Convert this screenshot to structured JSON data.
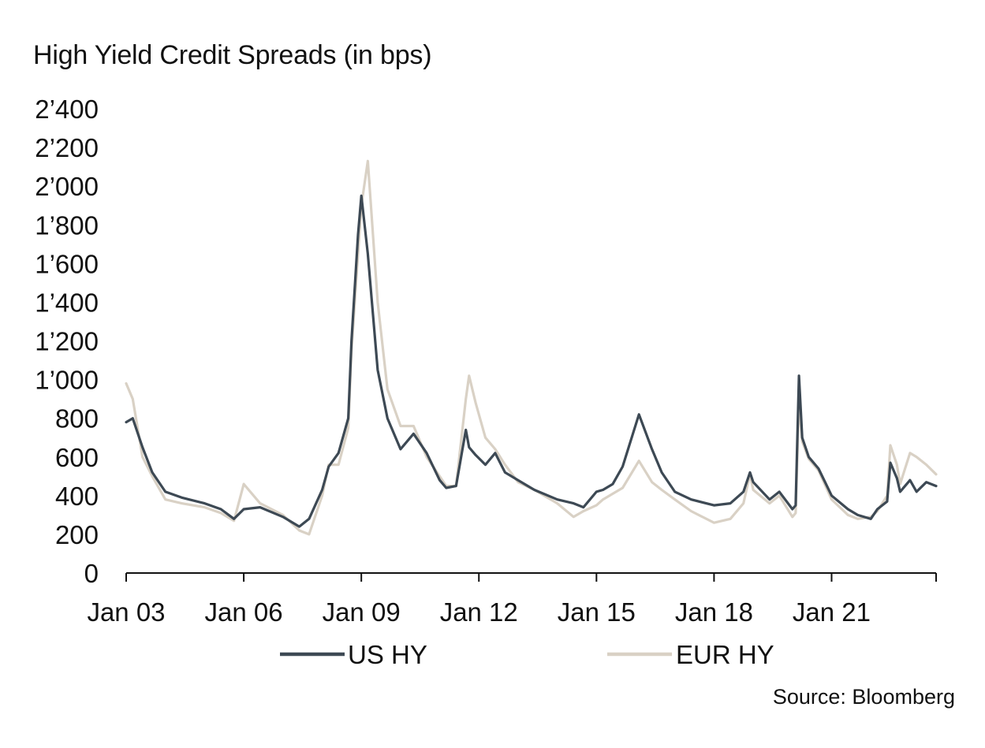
{
  "chart_data": {
    "type": "line",
    "title": "High Yield Credit Spreads (in bps)",
    "source": "Source: Bloomberg",
    "xlabel": "",
    "ylabel": "",
    "ylim": [
      0,
      2400
    ],
    "xlim": [
      "2003-01-01",
      "2023-09-01"
    ],
    "y_ticks": [
      0,
      200,
      400,
      600,
      800,
      1000,
      1200,
      1400,
      1600,
      1800,
      2000,
      2200,
      2400
    ],
    "y_tick_labels": [
      "0",
      "200",
      "400",
      "600",
      "800",
      "1’000",
      "1’200",
      "1’400",
      "1’600",
      "1’800",
      "2’000",
      "2’200",
      "2’400"
    ],
    "x_ticks": [
      "2003-01-01",
      "2006-01-01",
      "2009-01-01",
      "2012-01-01",
      "2015-01-01",
      "2018-01-01",
      "2021-01-01"
    ],
    "x_tick_labels": [
      "Jan 03",
      "Jan 06",
      "Jan 09",
      "Jan 12",
      "Jan 15",
      "Jan 18",
      "Jan 21"
    ],
    "grid": false,
    "legend": "bottom",
    "colors": {
      "US HY": "#3d4954",
      "EUR HY": "#d9d1c5"
    },
    "series": [
      {
        "name": "US HY",
        "x": [
          "2003-01",
          "2003-03",
          "2003-06",
          "2003-09",
          "2004-01",
          "2004-06",
          "2005-01",
          "2005-06",
          "2005-10",
          "2006-01",
          "2006-06",
          "2007-01",
          "2007-06",
          "2007-09",
          "2008-01",
          "2008-03",
          "2008-06",
          "2008-09",
          "2008-10",
          "2008-12",
          "2009-01",
          "2009-03",
          "2009-06",
          "2009-09",
          "2010-01",
          "2010-05",
          "2010-09",
          "2011-01",
          "2011-03",
          "2011-06",
          "2011-09",
          "2011-10",
          "2011-12",
          "2012-03",
          "2012-06",
          "2012-09",
          "2013-01",
          "2013-06",
          "2014-01",
          "2014-06",
          "2014-09",
          "2015-01",
          "2015-03",
          "2015-06",
          "2015-09",
          "2016-02",
          "2016-06",
          "2016-09",
          "2017-01",
          "2017-06",
          "2018-01",
          "2018-06",
          "2018-10",
          "2018-12",
          "2019-01",
          "2019-06",
          "2019-09",
          "2020-01",
          "2020-02",
          "2020-03",
          "2020-04",
          "2020-06",
          "2020-09",
          "2021-01",
          "2021-06",
          "2021-09",
          "2022-01",
          "2022-03",
          "2022-06",
          "2022-07",
          "2022-09",
          "2022-10",
          "2023-01",
          "2023-03",
          "2023-06",
          "2023-09"
        ],
        "y": [
          780,
          800,
          650,
          520,
          420,
          390,
          360,
          330,
          280,
          330,
          340,
          290,
          240,
          280,
          430,
          550,
          620,
          800,
          1200,
          1750,
          1950,
          1650,
          1050,
          800,
          640,
          720,
          620,
          480,
          440,
          450,
          740,
          650,
          610,
          560,
          620,
          520,
          480,
          430,
          380,
          360,
          340,
          420,
          430,
          460,
          550,
          820,
          640,
          520,
          420,
          380,
          350,
          360,
          420,
          520,
          470,
          380,
          420,
          330,
          350,
          1020,
          700,
          600,
          540,
          400,
          330,
          300,
          280,
          330,
          370,
          570,
          490,
          420,
          480,
          420,
          470,
          450
        ]
      },
      {
        "name": "EUR HY",
        "x": [
          "2003-01",
          "2003-03",
          "2003-06",
          "2003-09",
          "2004-01",
          "2004-06",
          "2005-01",
          "2005-06",
          "2005-10",
          "2006-01",
          "2006-06",
          "2007-01",
          "2007-06",
          "2007-09",
          "2008-01",
          "2008-03",
          "2008-06",
          "2008-09",
          "2008-10",
          "2008-12",
          "2009-01",
          "2009-03",
          "2009-06",
          "2009-09",
          "2010-01",
          "2010-05",
          "2010-09",
          "2011-01",
          "2011-03",
          "2011-06",
          "2011-09",
          "2011-10",
          "2011-12",
          "2012-03",
          "2012-06",
          "2012-09",
          "2013-01",
          "2013-06",
          "2014-01",
          "2014-06",
          "2014-09",
          "2015-01",
          "2015-03",
          "2015-06",
          "2015-09",
          "2016-02",
          "2016-06",
          "2016-09",
          "2017-01",
          "2017-06",
          "2018-01",
          "2018-06",
          "2018-10",
          "2018-12",
          "2019-01",
          "2019-06",
          "2019-09",
          "2020-01",
          "2020-02",
          "2020-03",
          "2020-04",
          "2020-06",
          "2020-09",
          "2021-01",
          "2021-06",
          "2021-09",
          "2022-01",
          "2022-03",
          "2022-06",
          "2022-07",
          "2022-09",
          "2022-10",
          "2023-01",
          "2023-03",
          "2023-06",
          "2023-09"
        ],
        "y": [
          980,
          900,
          600,
          500,
          380,
          360,
          340,
          310,
          270,
          460,
          360,
          300,
          220,
          200,
          400,
          560,
          560,
          750,
          1150,
          1650,
          1900,
          2130,
          1400,
          950,
          760,
          760,
          600,
          500,
          450,
          450,
          900,
          1020,
          880,
          700,
          640,
          560,
          470,
          430,
          360,
          290,
          320,
          350,
          380,
          410,
          440,
          580,
          470,
          430,
          380,
          320,
          260,
          280,
          360,
          510,
          430,
          360,
          400,
          290,
          310,
          890,
          680,
          590,
          530,
          380,
          300,
          280,
          290,
          320,
          400,
          660,
          560,
          460,
          620,
          600,
          560,
          510
        ]
      }
    ]
  }
}
